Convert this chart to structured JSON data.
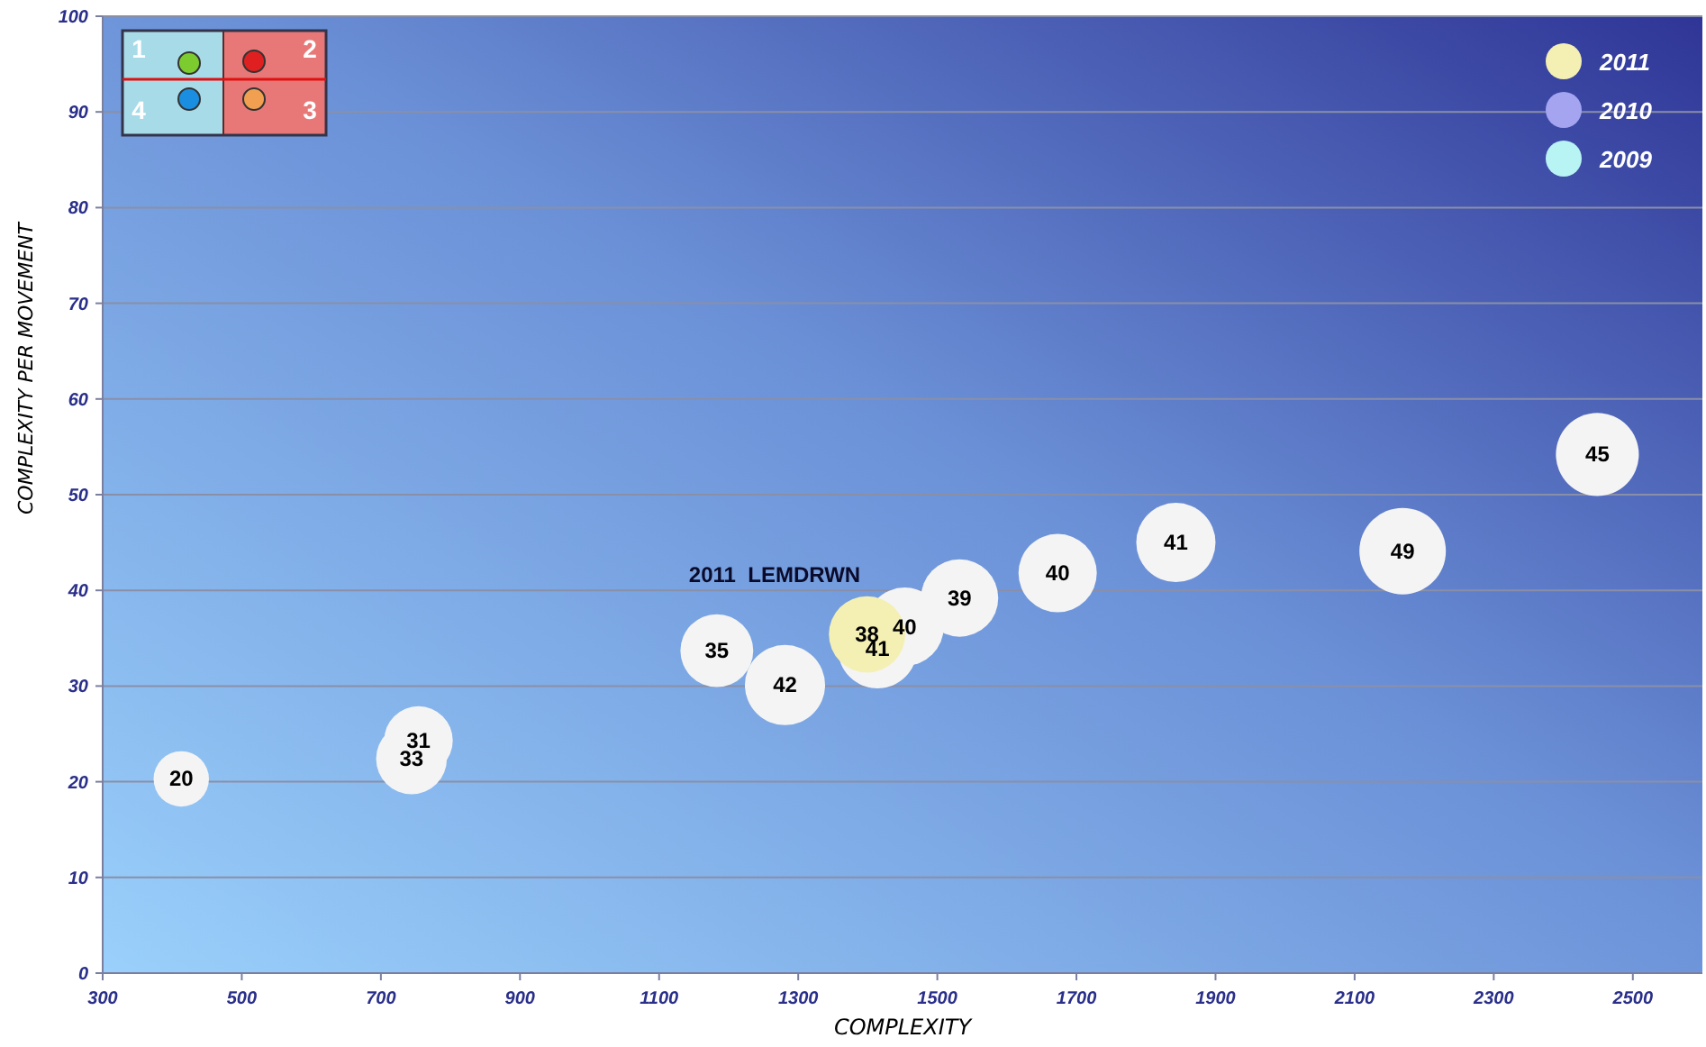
{
  "chart_data": {
    "type": "bubble",
    "xlabel": "COMPLEXITY",
    "ylabel": "COMPLEXITY PER MOVEMENT",
    "xlim": [
      300,
      2600
    ],
    "xticks": [
      300,
      500,
      700,
      900,
      1100,
      1300,
      1500,
      1700,
      1900,
      2100,
      2300,
      2500
    ],
    "ylim": [
      0,
      100
    ],
    "yticks": [
      0,
      10,
      20,
      30,
      40,
      50,
      60,
      70,
      80,
      90,
      100
    ],
    "grid": "y",
    "legend": "top right",
    "series": [
      {
        "color": "#f4f4f4",
        "x": [
          413,
          754,
          744,
          1183,
          1281,
          1414,
          1453,
          1532,
          1673,
          1843,
          2169,
          2449
        ],
        "values": [
          20.3,
          24.3,
          22.4,
          33.7,
          30.1,
          33.9,
          36.2,
          39.2,
          41.8,
          45.0,
          44.1,
          54.2
        ],
        "sizes": [
          0.41,
          0.63,
          0.67,
          0.71,
          0.86,
          0.84,
          0.82,
          0.8,
          0.82,
          0.84,
          1,
          0.92
        ]
      },
      {
        "name": "2011",
        "color": "#f4f0b4",
        "x": [
          1399
        ],
        "values": [
          35.4
        ],
        "sizes": [
          0.78
        ]
      },
      {
        "name": "2010",
        "color": "#a4a4f0"
      },
      {
        "name": "2009",
        "color": "#b8f4f4"
      }
    ],
    "annotations": [
      "2011  LEMDRWN",
      "1",
      "2",
      "3",
      "4",
      {
        "text": "20",
        "x": 413,
        "y": 20.3
      },
      {
        "text": "31",
        "x": 754,
        "y": 24.3
      },
      {
        "text": "33",
        "x": 744,
        "y": 22.4
      },
      {
        "text": "35",
        "x": 1183,
        "y": 33.7
      },
      {
        "text": "42",
        "x": 1281,
        "y": 30.1
      },
      {
        "text": "41",
        "x": 1414,
        "y": 33.9
      },
      {
        "text": "40",
        "x": 1453,
        "y": 36.2
      },
      {
        "text": "39",
        "x": 1532,
        "y": 39.2
      },
      {
        "text": "40",
        "x": 1673,
        "y": 41.8
      },
      {
        "text": "41",
        "x": 1843,
        "y": 45.0
      },
      {
        "text": "49",
        "x": 2169,
        "y": 44.1
      },
      {
        "text": "45",
        "x": 2449,
        "y": 54.2
      },
      {
        "text": "38",
        "x": 1399,
        "y": 35.4
      }
    ]
  }
}
